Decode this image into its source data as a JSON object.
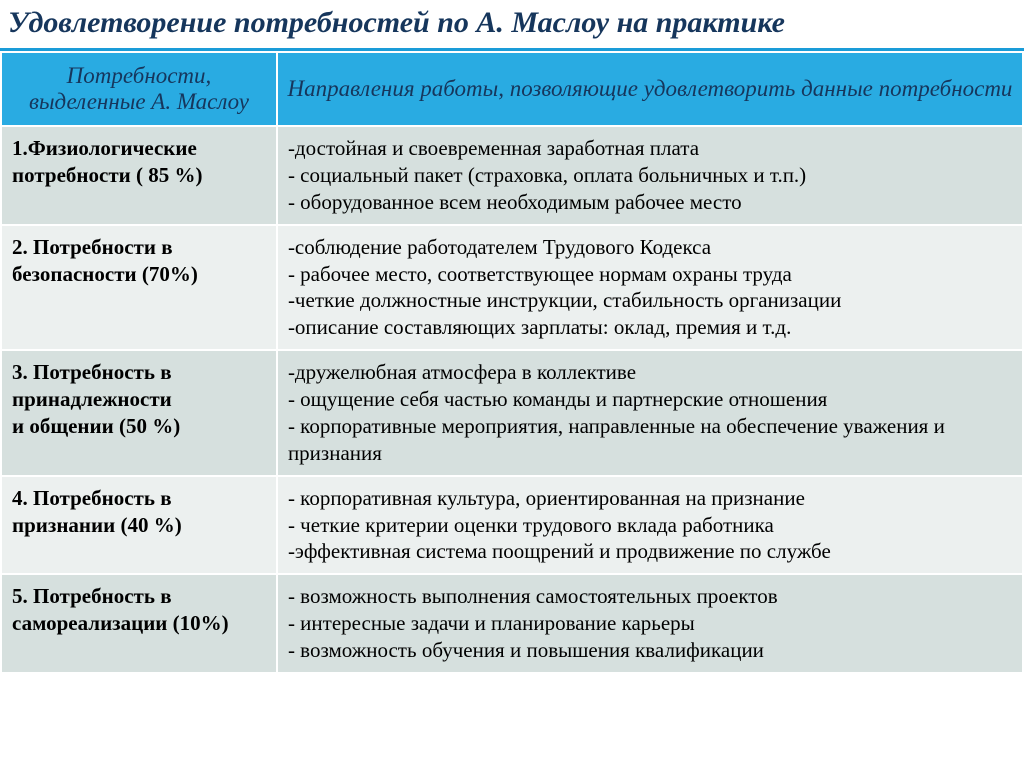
{
  "title": "Удовлетворение потребностей по А. Маслоу на практике",
  "title_color": "#16365c",
  "title_fontsize": 30,
  "title_underline_color": "#1a9cd8",
  "header": {
    "col1": "Потребности, выделенные А. Маслоу",
    "col2": "Направления работы, позволяющие удовлетворить данные потребности",
    "bg_color": "#29abe2",
    "text_color": "#16365c",
    "fontsize": 23
  },
  "columns": {
    "col1_width_pct": 27,
    "col2_width_pct": 73
  },
  "body_fontsize": 21,
  "body_text_color": "#000000",
  "row_bg_alt": [
    "#d6e0de",
    "#ecf0ef"
  ],
  "rows": [
    {
      "need": "1.Физиологические потребности ( 85 %)",
      "directions": "-достойная и своевременная заработная плата\n- социальный пакет (страховка, оплата больничных и т.п.)\n- оборудованное всем необходимым рабочее место"
    },
    {
      "need": "2. Потребности в безопасности (70%)",
      "directions": "-соблюдение работодателем Трудового Кодекса\n- рабочее место, соответствующее нормам охраны труда\n-четкие должностные инструкции, стабильность организации\n-описание составляющих зарплаты: оклад, премия и т.д."
    },
    {
      "need": "3. Потребность в принадлежности и общении (50 %)",
      "directions": "-дружелюбная атмосфера в коллективе\n- ощущение себя частью команды и партнерские отношения\n- корпоративные мероприятия, направленные на обеспечение уважения и признания"
    },
    {
      "need": "4. Потребность в признании (40 %)",
      "directions": "- корпоративная культура, ориентированная на признание\n- четкие критерии оценки трудового вклада  работника\n-эффективная система поощрений и продвижение по службе"
    },
    {
      "need": "5. Потребность в самореализации (10%)",
      "directions": "- возможность выполнения самостоятельных проектов\n- интересные задачи и планирование карьеры\n- возможность обучения и повышения квалификации"
    }
  ]
}
